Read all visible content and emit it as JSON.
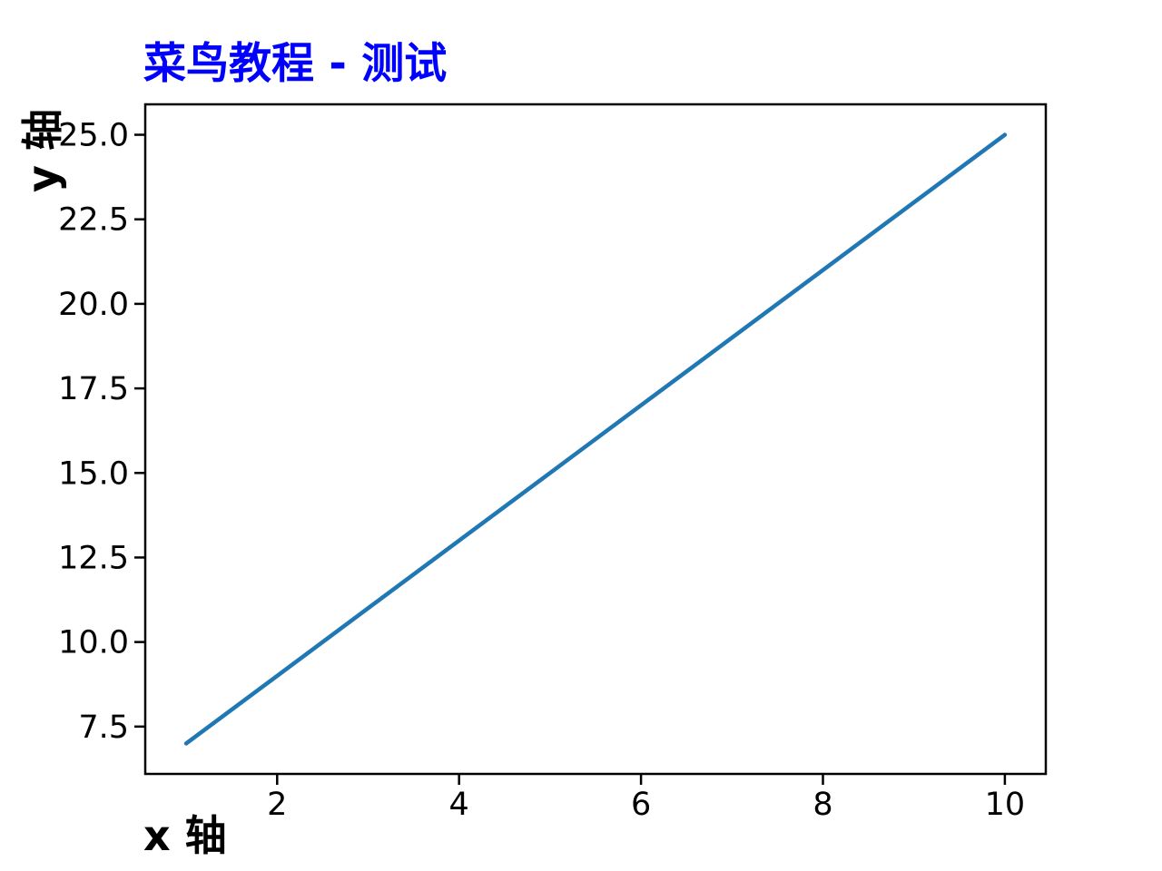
{
  "page": {
    "background": "#ffffff"
  },
  "chart_data": {
    "type": "line",
    "title": "菜鸟教程 - 测试",
    "title_color": "#0000ff",
    "title_loc": "left",
    "xlabel": "x 轴",
    "ylabel": "y 轴",
    "label_color": "#000000",
    "x": [
      1,
      2,
      3,
      4,
      5,
      6,
      7,
      8,
      9,
      10
    ],
    "series": [
      {
        "values": [
          7,
          9,
          11,
          13,
          15,
          17,
          19,
          21,
          23,
          25
        ],
        "color": "#1f77b4"
      }
    ],
    "xlim": [
      0.55,
      10.45
    ],
    "ylim": [
      6.1,
      25.9
    ],
    "xticks": [
      2,
      4,
      6,
      8,
      10
    ],
    "xticklabels": [
      "2",
      "4",
      "6",
      "8",
      "10"
    ],
    "yticks": [
      7.5,
      10.0,
      12.5,
      15.0,
      17.5,
      20.0,
      22.5,
      25.0
    ],
    "yticklabels": [
      "7.5",
      "10.0",
      "12.5",
      "15.0",
      "17.5",
      "20.0",
      "22.5",
      "25.0"
    ],
    "grid": false,
    "legend": "none",
    "axis_color": "#000000"
  }
}
